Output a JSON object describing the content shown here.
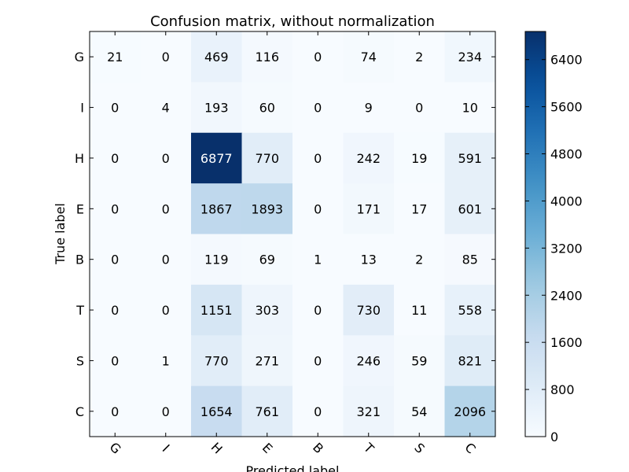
{
  "chart_data": {
    "type": "heatmap",
    "title": "Confusion matrix, without normalization",
    "xlabel": "Predicted label",
    "ylabel": "True label",
    "x_categories": [
      "G",
      "I",
      "H",
      "E",
      "B",
      "T",
      "S",
      "C"
    ],
    "y_categories": [
      "G",
      "I",
      "H",
      "E",
      "B",
      "T",
      "S",
      "C"
    ],
    "values": [
      [
        21,
        0,
        469,
        116,
        0,
        74,
        2,
        234
      ],
      [
        0,
        4,
        193,
        60,
        0,
        9,
        0,
        10
      ],
      [
        0,
        0,
        6877,
        770,
        0,
        242,
        19,
        591
      ],
      [
        0,
        0,
        1867,
        1893,
        0,
        171,
        17,
        601
      ],
      [
        0,
        0,
        119,
        69,
        1,
        13,
        2,
        85
      ],
      [
        0,
        0,
        1151,
        303,
        0,
        730,
        11,
        558
      ],
      [
        0,
        1,
        770,
        271,
        0,
        246,
        59,
        821
      ],
      [
        0,
        0,
        1654,
        761,
        0,
        321,
        54,
        2096
      ]
    ],
    "colormap": "Blues",
    "color_min": 0,
    "color_max": 6877,
    "colorbar_ticks": [
      0,
      800,
      1600,
      2400,
      3200,
      4000,
      4800,
      5600,
      6400
    ],
    "grid": false
  }
}
